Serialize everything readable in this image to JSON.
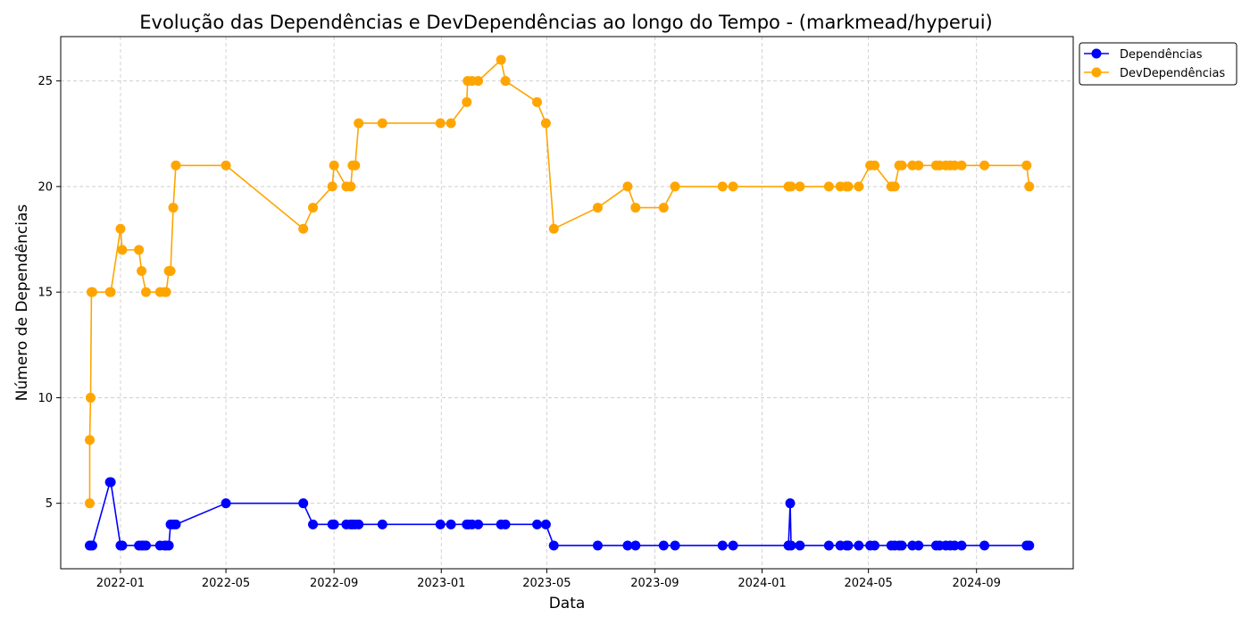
{
  "chart_data": {
    "type": "line",
    "title": "Evolução das Dependências e DevDependências ao longo do Tempo - (markmead/hyperui)",
    "xlabel": "Data",
    "ylabel": "Número de Dependências",
    "xlim": [
      "2021-10-25",
      "2024-12-20"
    ],
    "ylim": [
      1.9,
      27.1
    ],
    "x_ticks": [
      "2022-01",
      "2022-05",
      "2022-09",
      "2023-01",
      "2023-05",
      "2023-09",
      "2024-01",
      "2024-05",
      "2024-09"
    ],
    "y_ticks": [
      5,
      10,
      15,
      20,
      25
    ],
    "grid": true,
    "legend_position": "upper right, outside plot",
    "series": [
      {
        "name": "Dependências",
        "color": "#0000ff",
        "points": [
          [
            "2021-11-27",
            3
          ],
          [
            "2021-11-28",
            3
          ],
          [
            "2021-11-29",
            3
          ],
          [
            "2021-11-30",
            3
          ],
          [
            "2021-12-20",
            6
          ],
          [
            "2021-12-21",
            6
          ],
          [
            "2022-01-01",
            3
          ],
          [
            "2022-01-02",
            3
          ],
          [
            "2022-01-03",
            3
          ],
          [
            "2022-01-22",
            3
          ],
          [
            "2022-01-25",
            3
          ],
          [
            "2022-01-27",
            3
          ],
          [
            "2022-01-30",
            3
          ],
          [
            "2022-02-15",
            3
          ],
          [
            "2022-02-20",
            3
          ],
          [
            "2022-02-22",
            3
          ],
          [
            "2022-02-25",
            3
          ],
          [
            "2022-02-27",
            4
          ],
          [
            "2022-03-02",
            4
          ],
          [
            "2022-03-05",
            4
          ],
          [
            "2022-05-01",
            5
          ],
          [
            "2022-07-28",
            5
          ],
          [
            "2022-08-08",
            4
          ],
          [
            "2022-08-30",
            4
          ],
          [
            "2022-09-01",
            4
          ],
          [
            "2022-09-15",
            4
          ],
          [
            "2022-09-20",
            4
          ],
          [
            "2022-09-22",
            4
          ],
          [
            "2022-09-25",
            4
          ],
          [
            "2022-09-29",
            4
          ],
          [
            "2022-10-26",
            4
          ],
          [
            "2022-12-31",
            4
          ],
          [
            "2023-01-12",
            4
          ],
          [
            "2023-01-30",
            4
          ],
          [
            "2023-02-01",
            4
          ],
          [
            "2023-02-05",
            4
          ],
          [
            "2023-02-12",
            4
          ],
          [
            "2023-03-10",
            4
          ],
          [
            "2023-03-15",
            4
          ],
          [
            "2023-04-20",
            4
          ],
          [
            "2023-04-30",
            4
          ],
          [
            "2023-05-09",
            3
          ],
          [
            "2023-06-28",
            3
          ],
          [
            "2023-08-01",
            3
          ],
          [
            "2023-08-10",
            3
          ],
          [
            "2023-09-11",
            3
          ],
          [
            "2023-09-24",
            3
          ],
          [
            "2023-11-17",
            3
          ],
          [
            "2023-11-29",
            3
          ],
          [
            "2024-01-31",
            3
          ],
          [
            "2024-02-02",
            5
          ],
          [
            "2024-02-03",
            3
          ],
          [
            "2024-02-13",
            3
          ],
          [
            "2024-03-17",
            3
          ],
          [
            "2024-03-30",
            3
          ],
          [
            "2024-04-06",
            3
          ],
          [
            "2024-04-08",
            3
          ],
          [
            "2024-04-20",
            3
          ],
          [
            "2024-05-03",
            3
          ],
          [
            "2024-05-08",
            3
          ],
          [
            "2024-05-27",
            3
          ],
          [
            "2024-05-31",
            3
          ],
          [
            "2024-06-05",
            3
          ],
          [
            "2024-06-08",
            3
          ],
          [
            "2024-06-20",
            3
          ],
          [
            "2024-06-27",
            3
          ],
          [
            "2024-07-17",
            3
          ],
          [
            "2024-07-21",
            3
          ],
          [
            "2024-07-28",
            3
          ],
          [
            "2024-08-02",
            3
          ],
          [
            "2024-08-07",
            3
          ],
          [
            "2024-08-15",
            3
          ],
          [
            "2024-09-10",
            3
          ],
          [
            "2024-10-28",
            3
          ],
          [
            "2024-10-31",
            3
          ]
        ]
      },
      {
        "name": "DevDependências",
        "color": "#ffa500",
        "points": [
          [
            "2021-11-27",
            5
          ],
          [
            "2021-11-27",
            8
          ],
          [
            "2021-11-28",
            10
          ],
          [
            "2021-11-29",
            15
          ],
          [
            "2021-11-30",
            15
          ],
          [
            "2021-12-20",
            15
          ],
          [
            "2021-12-21",
            15
          ],
          [
            "2022-01-01",
            18
          ],
          [
            "2022-01-03",
            17
          ],
          [
            "2022-01-22",
            17
          ],
          [
            "2022-01-25",
            16
          ],
          [
            "2022-01-30",
            15
          ],
          [
            "2022-02-15",
            15
          ],
          [
            "2022-02-20",
            15
          ],
          [
            "2022-02-22",
            15
          ],
          [
            "2022-02-25",
            16
          ],
          [
            "2022-02-27",
            16
          ],
          [
            "2022-03-02",
            19
          ],
          [
            "2022-03-05",
            21
          ],
          [
            "2022-05-01",
            21
          ],
          [
            "2022-07-28",
            18
          ],
          [
            "2022-08-08",
            19
          ],
          [
            "2022-08-30",
            20
          ],
          [
            "2022-09-01",
            21
          ],
          [
            "2022-09-15",
            20
          ],
          [
            "2022-09-20",
            20
          ],
          [
            "2022-09-22",
            21
          ],
          [
            "2022-09-25",
            21
          ],
          [
            "2022-09-29",
            23
          ],
          [
            "2022-10-26",
            23
          ],
          [
            "2022-12-31",
            23
          ],
          [
            "2023-01-12",
            23
          ],
          [
            "2023-01-30",
            24
          ],
          [
            "2023-01-31",
            25
          ],
          [
            "2023-02-05",
            25
          ],
          [
            "2023-02-12",
            25
          ],
          [
            "2023-03-10",
            26
          ],
          [
            "2023-03-15",
            25
          ],
          [
            "2023-04-20",
            24
          ],
          [
            "2023-04-30",
            23
          ],
          [
            "2023-05-09",
            18
          ],
          [
            "2023-06-28",
            19
          ],
          [
            "2023-08-01",
            20
          ],
          [
            "2023-08-10",
            19
          ],
          [
            "2023-09-11",
            19
          ],
          [
            "2023-09-24",
            20
          ],
          [
            "2023-11-17",
            20
          ],
          [
            "2023-11-29",
            20
          ],
          [
            "2024-01-31",
            20
          ],
          [
            "2024-02-03",
            20
          ],
          [
            "2024-02-13",
            20
          ],
          [
            "2024-03-17",
            20
          ],
          [
            "2024-03-30",
            20
          ],
          [
            "2024-04-06",
            20
          ],
          [
            "2024-04-08",
            20
          ],
          [
            "2024-04-20",
            20
          ],
          [
            "2024-05-03",
            21
          ],
          [
            "2024-05-08",
            21
          ],
          [
            "2024-05-27",
            20
          ],
          [
            "2024-05-31",
            20
          ],
          [
            "2024-06-05",
            21
          ],
          [
            "2024-06-08",
            21
          ],
          [
            "2024-06-20",
            21
          ],
          [
            "2024-06-27",
            21
          ],
          [
            "2024-07-17",
            21
          ],
          [
            "2024-07-21",
            21
          ],
          [
            "2024-07-28",
            21
          ],
          [
            "2024-08-02",
            21
          ],
          [
            "2024-08-07",
            21
          ],
          [
            "2024-08-15",
            21
          ],
          [
            "2024-09-10",
            21
          ],
          [
            "2024-10-28",
            21
          ],
          [
            "2024-10-31",
            20
          ]
        ]
      }
    ]
  }
}
